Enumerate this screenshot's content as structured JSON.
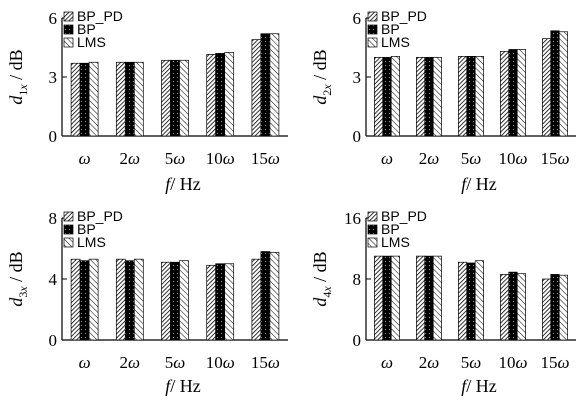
{
  "colors": {
    "axis": "#000000",
    "bar_edge": "#000000",
    "series_fill": [
      "diag-dense",
      "solid-black-dots",
      "diag-light"
    ]
  },
  "chart_data": [
    {
      "type": "bar",
      "categories": [
        "ω",
        "2ω",
        "5ω",
        "10ω",
        "15ω"
      ],
      "series": [
        {
          "name": "BP_PD",
          "values": [
            3.7,
            3.75,
            3.85,
            4.15,
            4.9
          ]
        },
        {
          "name": "BP",
          "values": [
            3.7,
            3.75,
            3.85,
            4.2,
            5.2
          ]
        },
        {
          "name": "LMS",
          "values": [
            3.75,
            3.75,
            3.85,
            4.25,
            5.2
          ]
        }
      ],
      "ylabel": {
        "var": "d",
        "sub": "1",
        "subvar": "x",
        "unit": "/ dB"
      },
      "xlabel": {
        "var": "f",
        "unit": "/ Hz"
      },
      "ylim": [
        0,
        6
      ],
      "yticks": [
        "0",
        "3",
        "6"
      ],
      "yticks_values": [
        0,
        3,
        6
      ],
      "legend": "top-left",
      "grid": false
    },
    {
      "type": "bar",
      "categories": [
        "ω",
        "2ω",
        "5ω",
        "10ω",
        "15ω"
      ],
      "series": [
        {
          "name": "BP_PD",
          "values": [
            4.0,
            4.0,
            4.05,
            4.3,
            4.95
          ]
        },
        {
          "name": "BP",
          "values": [
            4.0,
            4.0,
            4.05,
            4.4,
            5.35
          ]
        },
        {
          "name": "LMS",
          "values": [
            4.05,
            4.0,
            4.05,
            4.4,
            5.3
          ]
        }
      ],
      "ylabel": {
        "var": "d",
        "sub": "2",
        "subvar": "x",
        "unit": "/ dB"
      },
      "xlabel": {
        "var": "f",
        "unit": "/ Hz"
      },
      "ylim": [
        0,
        6
      ],
      "yticks": [
        "0",
        "3",
        "6"
      ],
      "yticks_values": [
        0,
        3,
        6
      ],
      "legend": "top-left",
      "grid": false
    },
    {
      "type": "bar",
      "categories": [
        "ω",
        "2ω",
        "5ω",
        "10ω",
        "15ω"
      ],
      "series": [
        {
          "name": "BP_PD",
          "values": [
            5.3,
            5.3,
            5.1,
            4.9,
            5.3
          ]
        },
        {
          "name": "BP",
          "values": [
            5.2,
            5.2,
            5.1,
            5.0,
            5.8
          ]
        },
        {
          "name": "LMS",
          "values": [
            5.3,
            5.3,
            5.2,
            5.0,
            5.75
          ]
        }
      ],
      "ylabel": {
        "var": "d",
        "sub": "3",
        "subvar": "x",
        "unit": "/ dB"
      },
      "xlabel": {
        "var": "f",
        "unit": "/ Hz"
      },
      "ylim": [
        0,
        8
      ],
      "yticks": [
        "0",
        "4",
        "8"
      ],
      "yticks_values": [
        0,
        4,
        8
      ],
      "legend": "top-left",
      "grid": false
    },
    {
      "type": "bar",
      "categories": [
        "ω",
        "2ω",
        "5ω",
        "10ω",
        "15ω"
      ],
      "series": [
        {
          "name": "BP_PD",
          "values": [
            11.0,
            11.0,
            10.2,
            8.6,
            8.0
          ]
        },
        {
          "name": "BP",
          "values": [
            11.0,
            11.0,
            10.1,
            8.9,
            8.6
          ]
        },
        {
          "name": "LMS",
          "values": [
            11.0,
            11.0,
            10.4,
            8.7,
            8.5
          ]
        }
      ],
      "ylabel": {
        "var": "d",
        "sub": "4",
        "subvar": "x",
        "unit": "/ dB"
      },
      "xlabel": {
        "var": "f",
        "unit": "/ Hz"
      },
      "ylim": [
        0,
        16
      ],
      "yticks": [
        "0",
        "8",
        "16"
      ],
      "yticks_values": [
        0,
        8,
        16
      ],
      "legend": "top-left",
      "grid": false
    }
  ]
}
